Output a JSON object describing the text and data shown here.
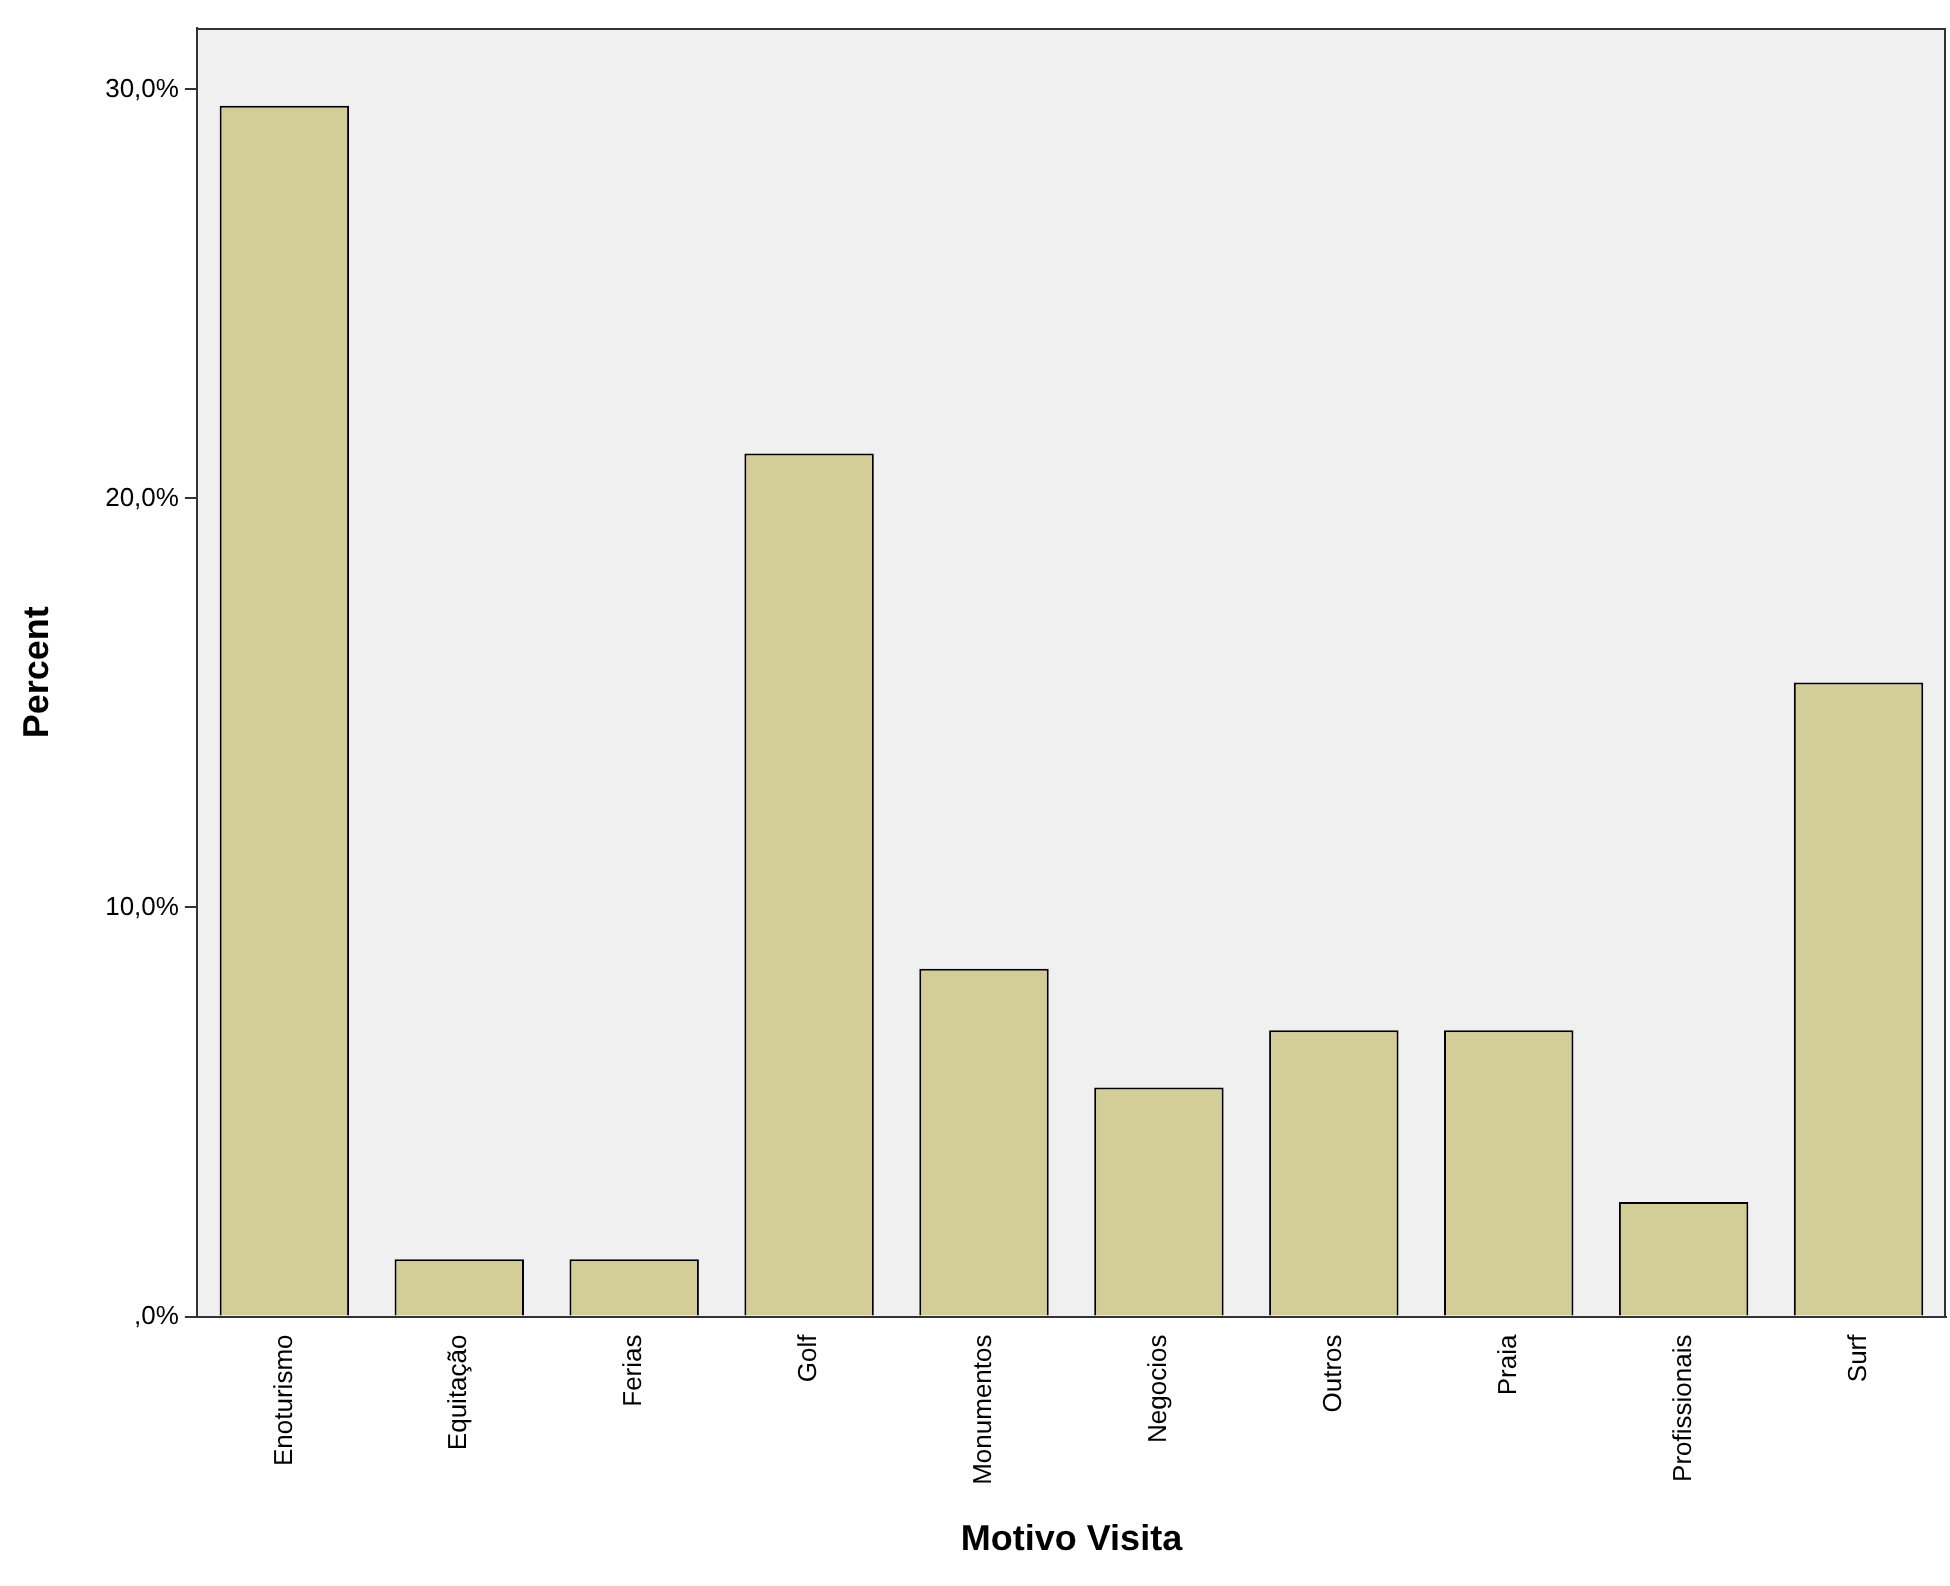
{
  "chart_data": {
    "type": "bar",
    "xlabel": "Motivo Visita",
    "ylabel": "Percent",
    "categories": [
      "Enoturismo",
      "Equitação",
      "Ferias",
      "Golf",
      "Monumentos",
      "Negocios",
      "Outros",
      "Praia",
      "Profissionais",
      "Surf"
    ],
    "values": [
      29.6,
      1.4,
      1.4,
      21.1,
      8.5,
      5.6,
      7.0,
      7.0,
      2.8,
      15.5
    ],
    "color": "#d3ce97",
    "ylim": [
      0,
      31.5
    ],
    "yticks": [
      {
        "value": 0,
        "label": ",0%"
      },
      {
        "value": 10,
        "label": "10,0%"
      },
      {
        "value": 20,
        "label": "20,0%"
      },
      {
        "value": 30,
        "label": "30,0%"
      }
    ],
    "grid": false,
    "legend": false
  }
}
